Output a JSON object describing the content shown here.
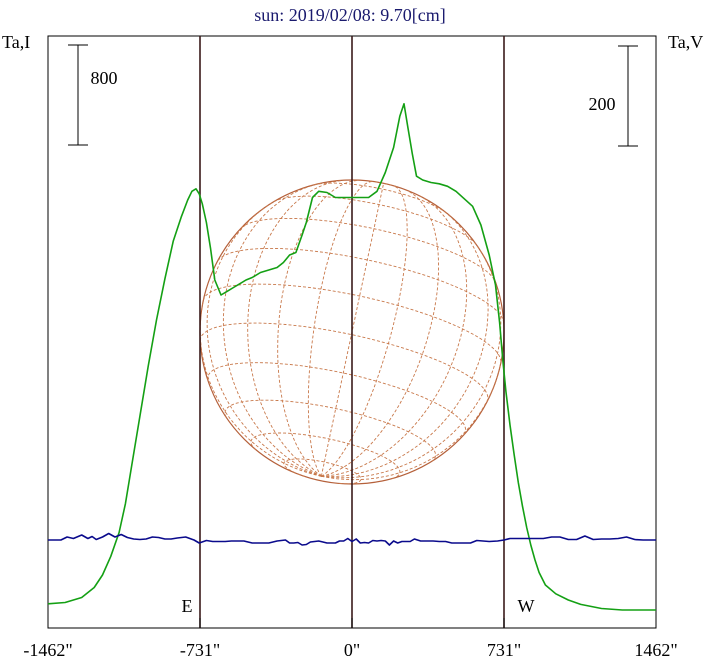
{
  "title": "sun: 2019/02/08: 9.70[cm]",
  "left_axis_label": "Ta,I",
  "right_axis_label": "Ta,V",
  "colors": {
    "title": "#1a1a6e",
    "frame": "#000000",
    "limb_lines": "#3a1a1a",
    "disk": "#b5603a",
    "grid": "#c8784a",
    "stokes_i": "#14a014",
    "stokes_v": "#0a0a8c"
  },
  "chart_data": {
    "type": "line",
    "xlim": [
      -1462,
      1462
    ],
    "x_ticks": [
      -1462,
      -731,
      0,
      731,
      1462
    ],
    "x_tick_labels": [
      "-1462\"",
      "-731\"",
      "0\"",
      "731\"",
      "1462\""
    ],
    "limb_markers": [
      {
        "label": "E",
        "x": -731
      },
      {
        "label": "W",
        "x": 731
      }
    ],
    "scale_bars": [
      {
        "axis": "left",
        "value": 800,
        "label": "800"
      },
      {
        "axis": "right",
        "value": 200,
        "label": "200"
      }
    ],
    "series": [
      {
        "label": "I",
        "axis": "left",
        "ylim": [
          0,
          4400
        ],
        "x": [
          -1462,
          -1380,
          -1300,
          -1240,
          -1200,
          -1160,
          -1120,
          -1090,
          -1060,
          -1020,
          -980,
          -940,
          -900,
          -860,
          -820,
          -790,
          -770,
          -750,
          -735,
          -720,
          -700,
          -680,
          -660,
          -630,
          -600,
          -570,
          -540,
          -510,
          -480,
          -440,
          -400,
          -360,
          -330,
          -300,
          -270,
          -240,
          -220,
          -190,
          -160,
          -120,
          -80,
          -40,
          0,
          40,
          80,
          120,
          160,
          200,
          230,
          250,
          270,
          290,
          310,
          340,
          380,
          420,
          460,
          500,
          540,
          580,
          620,
          660,
          690,
          710,
          725,
          740,
          760,
          780,
          800,
          820,
          840,
          860,
          880,
          900,
          930,
          980,
          1040,
          1100,
          1200,
          1300,
          1380,
          1462
        ],
        "y": [
          50,
          60,
          100,
          180,
          280,
          430,
          620,
          850,
          1150,
          1550,
          1950,
          2320,
          2650,
          2950,
          3150,
          3280,
          3350,
          3370,
          3330,
          3250,
          3100,
          2890,
          2640,
          2520,
          2550,
          2580,
          2610,
          2640,
          2660,
          2700,
          2720,
          2740,
          2780,
          2840,
          2860,
          3000,
          3100,
          3300,
          3350,
          3340,
          3300,
          3300,
          3300,
          3300,
          3300,
          3350,
          3500,
          3700,
          3950,
          4050,
          3850,
          3650,
          3470,
          3440,
          3420,
          3410,
          3390,
          3350,
          3290,
          3230,
          3080,
          2840,
          2600,
          2300,
          2000,
          1750,
          1480,
          1240,
          1020,
          830,
          660,
          520,
          400,
          300,
          200,
          130,
          80,
          45,
          12,
          0,
          0,
          0
        ]
      },
      {
        "label": "V",
        "axis": "right",
        "ylim": [
          -140,
          960
        ],
        "x": [
          -1462,
          -1400,
          -1370,
          -1340,
          -1300,
          -1270,
          -1250,
          -1230,
          -1200,
          -1170,
          -1140,
          -1110,
          -1080,
          -1050,
          -1020,
          -990,
          -960,
          -930,
          -900,
          -870,
          -840,
          -800,
          -760,
          -735,
          -700,
          -670,
          -640,
          -610,
          -580,
          -550,
          -520,
          -480,
          -440,
          -400,
          -360,
          -320,
          -300,
          -280,
          -260,
          -240,
          -220,
          -200,
          -180,
          -160,
          -140,
          -120,
          -100,
          -80,
          -60,
          -40,
          -20,
          0,
          20,
          40,
          60,
          80,
          100,
          120,
          140,
          160,
          180,
          200,
          220,
          240,
          260,
          280,
          300,
          330,
          360,
          390,
          420,
          450,
          480,
          510,
          540,
          570,
          600,
          630,
          660,
          700,
          731,
          760,
          800,
          840,
          880,
          920,
          960,
          1000,
          1040,
          1080,
          1120,
          1160,
          1200,
          1240,
          1280,
          1320,
          1360,
          1400,
          1462
        ],
        "y": [
          0,
          0,
          6,
          3,
          10,
          3,
          7,
          1,
          6,
          13,
          6,
          11,
          5,
          2,
          1,
          2,
          6,
          5,
          2,
          2,
          4,
          6,
          0,
          -6,
          -1,
          -3,
          -3,
          -3,
          -2,
          -2,
          -2,
          -6,
          -6,
          -6,
          -2,
          0,
          -6,
          -6,
          -5,
          -10,
          -9,
          -4,
          -3,
          -2,
          -4,
          -6,
          -6,
          -6,
          -2,
          -2,
          3,
          -3,
          2,
          -6,
          -5,
          -6,
          -1,
          -2,
          -1,
          -2,
          -10,
          -2,
          -6,
          -3,
          -3,
          -3,
          2,
          -2,
          -2,
          -2,
          -3,
          -3,
          -6,
          -6,
          -6,
          -6,
          -1,
          -2,
          -3,
          -2,
          0,
          3,
          3,
          3,
          3,
          3,
          6,
          6,
          1,
          1,
          8,
          1,
          2,
          2,
          3,
          6,
          1,
          0,
          0
        ]
      }
    ]
  }
}
